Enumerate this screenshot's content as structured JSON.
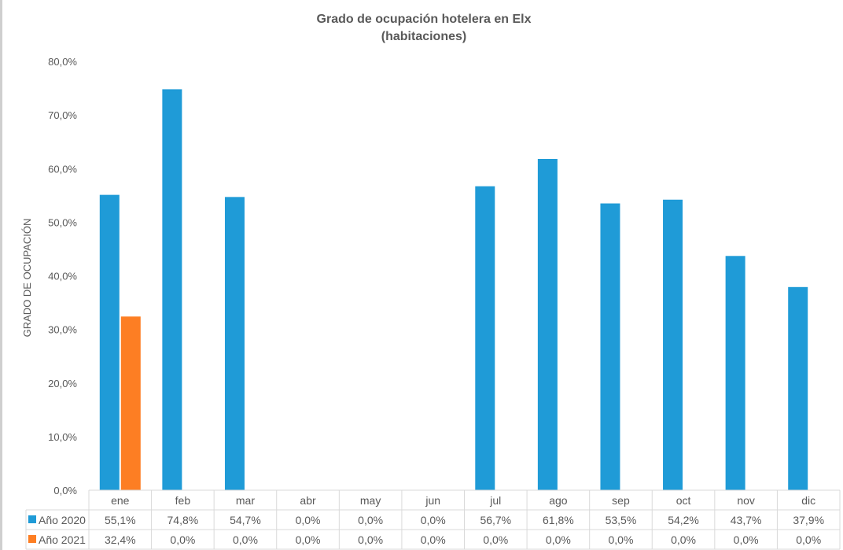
{
  "chart_data": {
    "type": "bar",
    "title_line1": "Grado de ocupación hotelera en Elx",
    "title_line2": "(habitaciones)",
    "xlabel": "",
    "ylabel": "GRADO DE OCUPACIÓN",
    "ylim": [
      0,
      80
    ],
    "yticks": [
      "0,0%",
      "10,0%",
      "20,0%",
      "30,0%",
      "40,0%",
      "50,0%",
      "60,0%",
      "70,0%",
      "80,0%"
    ],
    "grid": false,
    "legend": "data-table",
    "categories": [
      "ene",
      "feb",
      "mar",
      "abr",
      "may",
      "jun",
      "jul",
      "ago",
      "sep",
      "oct",
      "nov",
      "dic"
    ],
    "series": [
      {
        "name": "Año 2020",
        "color": "#1f9bd7",
        "values": [
          55.1,
          74.8,
          54.7,
          0.0,
          0.0,
          0.0,
          56.7,
          61.8,
          53.5,
          54.2,
          43.7,
          37.9
        ],
        "labels": [
          "55,1%",
          "74,8%",
          "54,7%",
          "0,0%",
          "0,0%",
          "0,0%",
          "56,7%",
          "61,8%",
          "53,5%",
          "54,2%",
          "43,7%",
          "37,9%"
        ]
      },
      {
        "name": "Año 2021",
        "color": "#fd7e23",
        "values": [
          32.4,
          0.0,
          0.0,
          0.0,
          0.0,
          0.0,
          0.0,
          0.0,
          0.0,
          0.0,
          0.0,
          0.0
        ],
        "labels": [
          "32,4%",
          "0,0%",
          "0,0%",
          "0,0%",
          "0,0%",
          "0,0%",
          "0,0%",
          "0,0%",
          "0,0%",
          "0,0%",
          "0,0%",
          "0,0%"
        ]
      }
    ]
  }
}
